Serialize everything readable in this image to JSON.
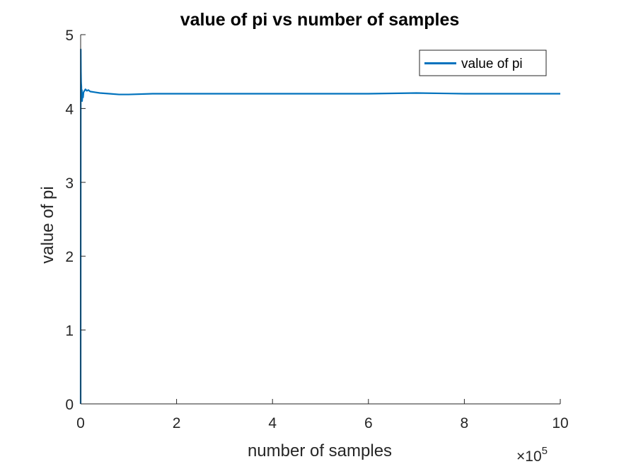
{
  "chart_data": {
    "type": "line",
    "title": "value of pi vs number of samples",
    "xlabel": "number of samples",
    "ylabel": "value of pi",
    "xlim": [
      0,
      1000000
    ],
    "ylim": [
      0,
      5
    ],
    "x_ticks": [
      0,
      200000,
      400000,
      600000,
      800000,
      1000000
    ],
    "x_tick_labels": [
      "0",
      "2",
      "4",
      "6",
      "8",
      "10"
    ],
    "x_exponent_prefix": "×10",
    "x_exponent": "5",
    "y_ticks": [
      0,
      1,
      2,
      3,
      4,
      5
    ],
    "y_tick_labels": [
      "0",
      "1",
      "2",
      "3",
      "4",
      "5"
    ],
    "grid": false,
    "legend": {
      "position": "top-right"
    },
    "series": [
      {
        "name": "value of pi",
        "color": "#0072BD",
        "x": [
          1,
          300,
          600,
          1000,
          1500,
          2000,
          2500,
          3000,
          4000,
          5000,
          6000,
          8000,
          10000,
          13000,
          16000,
          20000,
          30000,
          40000,
          60000,
          80000,
          100000,
          150000,
          200000,
          300000,
          400000,
          500000,
          600000,
          700000,
          800000,
          900000,
          1000000
        ],
        "y": [
          0,
          4.8,
          4.5,
          4.35,
          4.3,
          4.15,
          4.25,
          4.1,
          4.2,
          4.15,
          4.22,
          4.24,
          4.26,
          4.24,
          4.25,
          4.23,
          4.22,
          4.21,
          4.2,
          4.19,
          4.19,
          4.2,
          4.2,
          4.2,
          4.2,
          4.2,
          4.2,
          4.21,
          4.2,
          4.2,
          4.2
        ]
      }
    ]
  }
}
